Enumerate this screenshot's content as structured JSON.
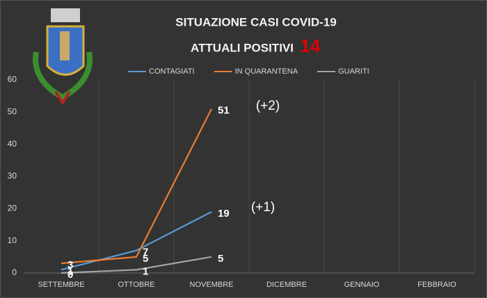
{
  "chart_data": {
    "type": "line",
    "title": "SITUAZIONE CASI COVID-19",
    "subtitle": "ATTUALI POSITIVI",
    "positive_count": 14,
    "annotations": [
      "(+2)",
      "(+1)"
    ],
    "categories": [
      "SETTEMBRE",
      "OTTOBRE",
      "NOVEMBRE",
      "DICEMBRE",
      "GENNAIO",
      "FEBBRAIO"
    ],
    "series": [
      {
        "name": "CONTAGIATI",
        "color": "#5b9bd5",
        "values": [
          1,
          7,
          19,
          null,
          null,
          null
        ]
      },
      {
        "name": "IN QUARANTENA",
        "color": "#ed7d31",
        "values": [
          3,
          5,
          51,
          null,
          null,
          null
        ]
      },
      {
        "name": "GUARITI",
        "color": "#a5a5a5",
        "values": [
          0,
          1,
          5,
          null,
          null,
          null
        ]
      }
    ],
    "ylim": [
      0,
      60
    ],
    "yticks": [
      0,
      10,
      20,
      30,
      40,
      50,
      60
    ],
    "grid": "x",
    "legend": "top",
    "data_labels": true
  }
}
